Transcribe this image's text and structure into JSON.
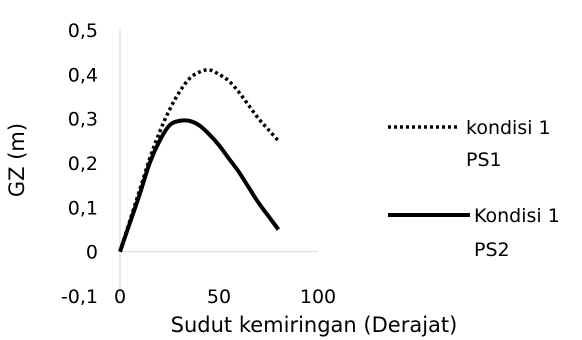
{
  "chart_data": {
    "type": "line",
    "xlabel": "Sudut kemiringan (Derajat)",
    "ylabel": "GZ (m)",
    "xlim": [
      0,
      100
    ],
    "ylim": [
      -0.1,
      0.5
    ],
    "x_ticks": [
      "0",
      "50",
      "100"
    ],
    "y_ticks": [
      "-0,1",
      "0",
      "0,1",
      "0,2",
      "0,3",
      "0,4",
      "0,5"
    ],
    "grid": false,
    "legend_position": "right",
    "series": [
      {
        "name_lines": [
          "kondisi 1",
          "PS1"
        ],
        "line_style": "dotted",
        "color": "#000000",
        "x": [
          0,
          5,
          10,
          15,
          20,
          25,
          30,
          35,
          40,
          45,
          50,
          55,
          60,
          65,
          70,
          75,
          80
        ],
        "y": [
          0,
          0.07,
          0.14,
          0.21,
          0.27,
          0.32,
          0.36,
          0.39,
          0.405,
          0.41,
          0.4,
          0.385,
          0.36,
          0.33,
          0.3,
          0.275,
          0.25
        ]
      },
      {
        "name_lines": [
          "Kondisi 1",
          "PS2"
        ],
        "line_style": "solid",
        "color": "#000000",
        "x": [
          0,
          5,
          10,
          15,
          20,
          25,
          30,
          35,
          40,
          45,
          50,
          55,
          60,
          65,
          70,
          75,
          80
        ],
        "y": [
          0,
          0.065,
          0.13,
          0.2,
          0.25,
          0.285,
          0.295,
          0.295,
          0.285,
          0.265,
          0.24,
          0.21,
          0.18,
          0.145,
          0.11,
          0.08,
          0.05
        ]
      }
    ]
  }
}
